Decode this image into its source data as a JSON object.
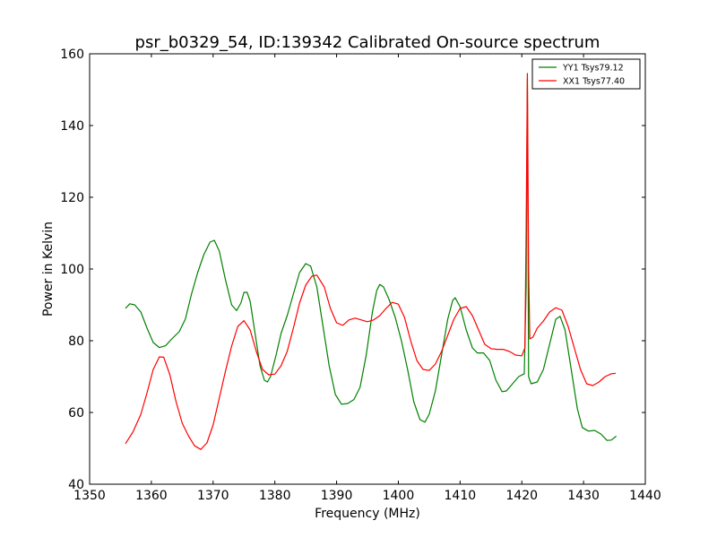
{
  "chart_data": {
    "type": "line",
    "title": "psr_b0329_54, ID:139342 Calibrated On-source spectrum",
    "xlabel": "Frequency (MHz)",
    "ylabel": "Power in Kelvin",
    "xlim": [
      1350,
      1440
    ],
    "ylim": [
      40,
      160
    ],
    "xticks": [
      1350,
      1360,
      1370,
      1380,
      1390,
      1400,
      1410,
      1420,
      1430,
      1440
    ],
    "yticks": [
      40,
      60,
      80,
      100,
      120,
      140,
      160
    ],
    "grid": false,
    "legend_position": "top-right",
    "series": [
      {
        "name": "YY1 Tsys79.12",
        "color": "#008000",
        "points": [
          [
            1355.8,
            89
          ],
          [
            1356.5,
            90.3
          ],
          [
            1357.3,
            90
          ],
          [
            1358.3,
            88
          ],
          [
            1359.3,
            83.5
          ],
          [
            1360.3,
            79.5
          ],
          [
            1361.3,
            78.1
          ],
          [
            1362.3,
            78.6
          ],
          [
            1363.3,
            80.5
          ],
          [
            1364.5,
            82.5
          ],
          [
            1365.5,
            86
          ],
          [
            1366.5,
            93
          ],
          [
            1367.5,
            99
          ],
          [
            1368.5,
            104
          ],
          [
            1369.5,
            107.5
          ],
          [
            1370.2,
            108
          ],
          [
            1371,
            105
          ],
          [
            1372,
            97
          ],
          [
            1373,
            90
          ],
          [
            1373.8,
            88.4
          ],
          [
            1374.5,
            90.5
          ],
          [
            1375,
            93.5
          ],
          [
            1375.5,
            93.5
          ],
          [
            1376,
            91
          ],
          [
            1376.8,
            82
          ],
          [
            1377.6,
            73
          ],
          [
            1378.3,
            69
          ],
          [
            1378.8,
            68.5
          ],
          [
            1379.3,
            70
          ],
          [
            1380.2,
            76
          ],
          [
            1381,
            82
          ],
          [
            1382,
            87
          ],
          [
            1383,
            93
          ],
          [
            1384,
            99
          ],
          [
            1385,
            101.5
          ],
          [
            1385.8,
            100.8
          ],
          [
            1386.8,
            95
          ],
          [
            1387.8,
            84
          ],
          [
            1388.8,
            73
          ],
          [
            1389.8,
            65
          ],
          [
            1390.8,
            62.3
          ],
          [
            1391.8,
            62.5
          ],
          [
            1392.8,
            63.6
          ],
          [
            1393.8,
            67
          ],
          [
            1394.8,
            76
          ],
          [
            1395.8,
            88
          ],
          [
            1396.5,
            94
          ],
          [
            1397,
            95.7
          ],
          [
            1397.6,
            95
          ],
          [
            1398.5,
            91.5
          ],
          [
            1399.5,
            86.5
          ],
          [
            1400.5,
            80
          ],
          [
            1401.5,
            72
          ],
          [
            1402.5,
            63
          ],
          [
            1403.5,
            58
          ],
          [
            1404.3,
            57.3
          ],
          [
            1405,
            59.5
          ],
          [
            1406,
            66
          ],
          [
            1407,
            76
          ],
          [
            1408,
            86
          ],
          [
            1408.8,
            91.2
          ],
          [
            1409.2,
            92
          ],
          [
            1410,
            89.5
          ],
          [
            1411,
            83
          ],
          [
            1412,
            78
          ],
          [
            1412.8,
            76.6
          ],
          [
            1413.8,
            76.6
          ],
          [
            1414.8,
            74.5
          ],
          [
            1415.8,
            69
          ],
          [
            1416.8,
            65.8
          ],
          [
            1417.5,
            66
          ],
          [
            1418.5,
            68
          ],
          [
            1419.5,
            70
          ],
          [
            1420.4,
            70.8
          ],
          [
            1420.7,
            95
          ],
          [
            1420.9,
            153
          ],
          [
            1421.1,
            70
          ],
          [
            1421.5,
            68
          ],
          [
            1422.5,
            68.5
          ],
          [
            1423.5,
            72
          ],
          [
            1424.5,
            79
          ],
          [
            1425.5,
            86
          ],
          [
            1426.2,
            86.8
          ],
          [
            1427,
            83
          ],
          [
            1428,
            72
          ],
          [
            1429,
            61
          ],
          [
            1429.8,
            55.8
          ],
          [
            1430.8,
            54.8
          ],
          [
            1431.8,
            55
          ],
          [
            1432.8,
            54
          ],
          [
            1433.8,
            52.2
          ],
          [
            1434.5,
            52.3
          ],
          [
            1435.3,
            53.4
          ]
        ]
      },
      {
        "name": "XX1 Tsys77.40",
        "color": "#ff0000",
        "points": [
          [
            1355.8,
            51.3
          ],
          [
            1357,
            54.5
          ],
          [
            1358.3,
            59.5
          ],
          [
            1359.3,
            65.5
          ],
          [
            1360.3,
            72
          ],
          [
            1361.3,
            75.5
          ],
          [
            1362,
            75.4
          ],
          [
            1363,
            70.5
          ],
          [
            1364,
            63
          ],
          [
            1365,
            57
          ],
          [
            1366,
            53.5
          ],
          [
            1367,
            50.7
          ],
          [
            1368,
            49.7
          ],
          [
            1369,
            51.5
          ],
          [
            1370,
            56.5
          ],
          [
            1371,
            64
          ],
          [
            1372,
            71.5
          ],
          [
            1373,
            78.5
          ],
          [
            1374,
            84
          ],
          [
            1375,
            85.6
          ],
          [
            1376,
            83
          ],
          [
            1377,
            77
          ],
          [
            1378,
            72
          ],
          [
            1379,
            70.5
          ],
          [
            1380,
            70.7
          ],
          [
            1381,
            73
          ],
          [
            1382,
            77
          ],
          [
            1383,
            83.5
          ],
          [
            1384,
            90.5
          ],
          [
            1385,
            95.5
          ],
          [
            1386,
            98
          ],
          [
            1386.8,
            98.3
          ],
          [
            1388,
            95
          ],
          [
            1389,
            89
          ],
          [
            1390,
            85
          ],
          [
            1391,
            84.3
          ],
          [
            1392,
            85.8
          ],
          [
            1393,
            86.3
          ],
          [
            1394,
            85.8
          ],
          [
            1395,
            85.3
          ],
          [
            1396,
            85.8
          ],
          [
            1397,
            87
          ],
          [
            1398,
            89
          ],
          [
            1399,
            90.7
          ],
          [
            1400,
            90.2
          ],
          [
            1401,
            86.5
          ],
          [
            1402,
            80
          ],
          [
            1403,
            74.5
          ],
          [
            1404,
            72
          ],
          [
            1405,
            71.7
          ],
          [
            1406,
            73.5
          ],
          [
            1407,
            77
          ],
          [
            1408,
            81.5
          ],
          [
            1409,
            86
          ],
          [
            1410,
            89
          ],
          [
            1411,
            89.5
          ],
          [
            1412,
            87
          ],
          [
            1413,
            83
          ],
          [
            1414,
            79
          ],
          [
            1415,
            77.8
          ],
          [
            1416,
            77.6
          ],
          [
            1417,
            77.6
          ],
          [
            1418,
            77
          ],
          [
            1419,
            76
          ],
          [
            1420,
            75.8
          ],
          [
            1420.5,
            78
          ],
          [
            1420.7,
            110
          ],
          [
            1420.9,
            154.5
          ],
          [
            1421.1,
            100
          ],
          [
            1421.3,
            80.5
          ],
          [
            1421.8,
            81
          ],
          [
            1422.5,
            83.5
          ],
          [
            1423.5,
            85.5
          ],
          [
            1424.5,
            88
          ],
          [
            1425.5,
            89.2
          ],
          [
            1426.5,
            88.5
          ],
          [
            1427.5,
            84
          ],
          [
            1428.5,
            78
          ],
          [
            1429.5,
            72
          ],
          [
            1430.5,
            68
          ],
          [
            1431.5,
            67.5
          ],
          [
            1432.5,
            68.5
          ],
          [
            1433.5,
            70
          ],
          [
            1434.5,
            70.8
          ],
          [
            1435.2,
            70.9
          ]
        ]
      }
    ]
  }
}
